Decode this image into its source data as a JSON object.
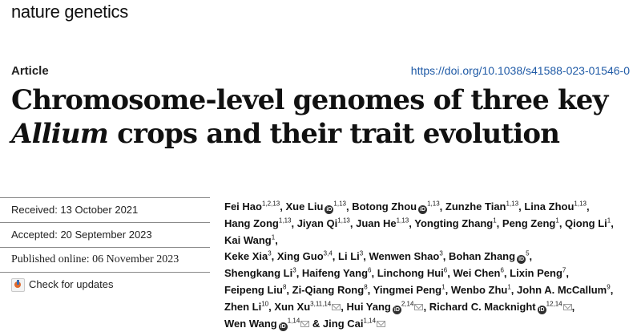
{
  "journal": "nature genetics",
  "article_type": "Article",
  "doi": "https://doi.org/10.1038/s41588-023-01546-0",
  "title": {
    "line1": "Chromosome-level genomes of three key",
    "line2_italic": "Allium",
    "line2_rest": " crops and their trait evolution"
  },
  "dates": {
    "received": {
      "label": "Received:",
      "value": " 13 October 2021"
    },
    "accepted": {
      "label": "Accepted:",
      "value": " 20 September 2023"
    },
    "published": {
      "label": "Published online:",
      "value": " 06 November 2023"
    }
  },
  "check_updates": "Check for updates",
  "orcid_icon_text": "iD",
  "separators": {
    "comma": ", ",
    "and": " & "
  },
  "authors": [
    {
      "name": "Fei Hao",
      "aff": "1,2,13",
      "orcid": false,
      "corr": false
    },
    {
      "name": "Xue Liu",
      "aff": "1,13",
      "orcid": true,
      "corr": false
    },
    {
      "name": "Botong Zhou",
      "aff": "1,13",
      "orcid": true,
      "corr": false
    },
    {
      "name": "Zunzhe Tian",
      "aff": "1,13",
      "orcid": false,
      "corr": false
    },
    {
      "name": "Lina Zhou",
      "aff": "1,13",
      "orcid": false,
      "corr": false
    },
    {
      "name": "Hang Zong",
      "aff": "1,13",
      "orcid": false,
      "corr": false
    },
    {
      "name": "Jiyan Qi",
      "aff": "1,13",
      "orcid": false,
      "corr": false
    },
    {
      "name": "Juan He",
      "aff": "1,13",
      "orcid": false,
      "corr": false
    },
    {
      "name": "Yongting Zhang",
      "aff": "1",
      "orcid": false,
      "corr": false
    },
    {
      "name": "Peng Zeng",
      "aff": "1",
      "orcid": false,
      "corr": false
    },
    {
      "name": "Qiong Li",
      "aff": "1",
      "orcid": false,
      "corr": false
    },
    {
      "name": "Kai Wang",
      "aff": "1",
      "orcid": false,
      "corr": false
    },
    {
      "name": "Keke Xia",
      "aff": "3",
      "orcid": false,
      "corr": false
    },
    {
      "name": "Xing Guo",
      "aff": "3,4",
      "orcid": false,
      "corr": false
    },
    {
      "name": "Li Li",
      "aff": "3",
      "orcid": false,
      "corr": false
    },
    {
      "name": "Wenwen Shao",
      "aff": "3",
      "orcid": false,
      "corr": false
    },
    {
      "name": "Bohan Zhang",
      "aff": "5",
      "orcid": true,
      "corr": false
    },
    {
      "name": "Shengkang Li",
      "aff": "3",
      "orcid": false,
      "corr": false
    },
    {
      "name": "Haifeng Yang",
      "aff": "6",
      "orcid": false,
      "corr": false
    },
    {
      "name": "Linchong Hui",
      "aff": "6",
      "orcid": false,
      "corr": false
    },
    {
      "name": "Wei Chen",
      "aff": "6",
      "orcid": false,
      "corr": false
    },
    {
      "name": "Lixin Peng",
      "aff": "7",
      "orcid": false,
      "corr": false
    },
    {
      "name": "Feipeng Liu",
      "aff": "8",
      "orcid": false,
      "corr": false
    },
    {
      "name": "Zi-Qiang Rong",
      "aff": "8",
      "orcid": false,
      "corr": false
    },
    {
      "name": "Yingmei Peng",
      "aff": "1",
      "orcid": false,
      "corr": false
    },
    {
      "name": "Wenbo Zhu",
      "aff": "1",
      "orcid": false,
      "corr": false
    },
    {
      "name": "John A. McCallum",
      "aff": "9",
      "orcid": false,
      "corr": false
    },
    {
      "name": "Zhen Li",
      "aff": "10",
      "orcid": false,
      "corr": false
    },
    {
      "name": "Xun Xu",
      "aff": "3,11,14",
      "orcid": false,
      "corr": true
    },
    {
      "name": "Hui Yang",
      "aff": "2,14",
      "orcid": true,
      "corr": true
    },
    {
      "name": "Richard C. Macknight",
      "aff": "12,14",
      "orcid": true,
      "corr": true
    },
    {
      "name": "Wen Wang",
      "aff": "1,14",
      "orcid": true,
      "corr": true
    },
    {
      "name": "Jing Cai",
      "aff": "1,14",
      "orcid": false,
      "corr": true
    }
  ],
  "author_line_breaks_after": [
    4,
    11,
    16,
    21,
    26,
    30
  ]
}
